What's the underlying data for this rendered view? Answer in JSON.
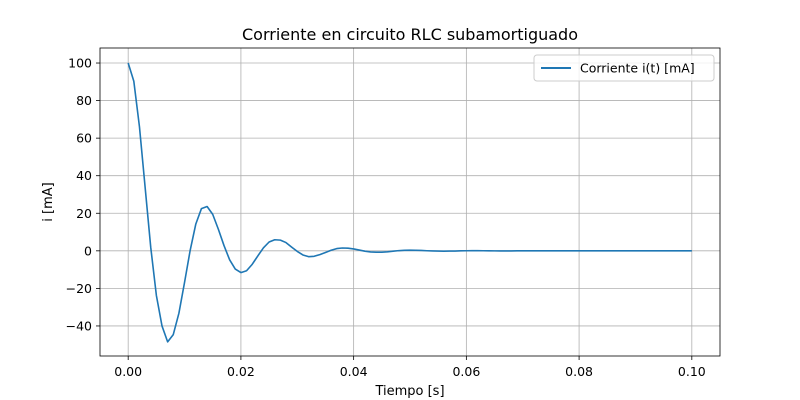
{
  "chart_data": {
    "type": "line",
    "title": "Corriente en circuito RLC subamortiguado",
    "xlabel": "Tiempo [s]",
    "ylabel": "i [mA]",
    "xlim": [
      -0.005,
      0.105
    ],
    "ylim": [
      -56,
      108
    ],
    "xticks": [
      0.0,
      0.02,
      0.04,
      0.06,
      0.08,
      0.1
    ],
    "xtick_labels": [
      "0.00",
      "0.02",
      "0.04",
      "0.06",
      "0.08",
      "0.10"
    ],
    "yticks": [
      -40,
      -20,
      0,
      20,
      40,
      60,
      80,
      100
    ],
    "ytick_labels": [
      "−40",
      "−20",
      "0",
      "20",
      "40",
      "60",
      "80",
      "100"
    ],
    "grid": true,
    "legend": {
      "position": "top-right"
    },
    "series": [
      {
        "name": "Corriente i(t) [mA]",
        "color": "#1f77b4",
        "x": [
          0.0,
          0.001,
          0.002,
          0.003,
          0.004,
          0.005,
          0.006,
          0.007,
          0.008,
          0.009,
          0.01,
          0.011,
          0.012,
          0.013,
          0.014,
          0.015,
          0.016,
          0.017,
          0.018,
          0.019,
          0.02,
          0.021,
          0.022,
          0.023,
          0.024,
          0.025,
          0.026,
          0.027,
          0.028,
          0.029,
          0.03,
          0.031,
          0.032,
          0.033,
          0.034,
          0.035,
          0.036,
          0.037,
          0.038,
          0.039,
          0.04,
          0.041,
          0.042,
          0.043,
          0.044,
          0.045,
          0.046,
          0.047,
          0.048,
          0.049,
          0.05,
          0.051,
          0.052,
          0.053,
          0.054,
          0.055,
          0.056,
          0.057,
          0.058,
          0.059,
          0.06,
          0.061,
          0.062,
          0.063,
          0.064,
          0.065,
          0.066,
          0.067,
          0.068,
          0.069,
          0.07,
          0.071,
          0.072,
          0.073,
          0.074,
          0.075,
          0.076,
          0.077,
          0.078,
          0.079,
          0.08,
          0.081,
          0.082,
          0.083,
          0.084,
          0.085,
          0.086,
          0.087,
          0.088,
          0.089,
          0.09,
          0.091,
          0.092,
          0.093,
          0.094,
          0.095,
          0.096,
          0.097,
          0.098,
          0.099,
          0.1
        ],
        "y": [
          100.0,
          90.3,
          66.1,
          34.0,
          1.9,
          -23.7,
          -40.0,
          -48.5,
          -44.6,
          -33.2,
          -16.8,
          0.3,
          14.3,
          22.5,
          23.6,
          19.4,
          11.5,
          2.8,
          -4.8,
          -9.7,
          -11.6,
          -10.6,
          -7.2,
          -2.7,
          1.6,
          4.7,
          5.9,
          5.7,
          4.4,
          2.0,
          -0.3,
          -2.2,
          -3.1,
          -2.9,
          -2.0,
          -0.9,
          0.3,
          1.2,
          1.5,
          1.4,
          1.0,
          0.4,
          -0.2,
          -0.6,
          -0.7,
          -0.7,
          -0.5,
          -0.2,
          0.1,
          0.3,
          0.35,
          0.3,
          0.2,
          0.05,
          -0.05,
          -0.15,
          -0.2,
          -0.15,
          -0.1,
          0.0,
          0.05,
          0.08,
          0.08,
          0.05,
          0.02,
          -0.02,
          -0.04,
          -0.04,
          -0.03,
          -0.01,
          0.01,
          0.02,
          0.02,
          0.01,
          0.0,
          -0.01,
          -0.01,
          -0.01,
          0.0,
          0.0,
          0.0,
          0.0,
          0.0,
          0.0,
          0.0,
          0.0,
          0.0,
          0.0,
          0.0,
          0.0,
          0.0,
          0.0,
          0.0,
          0.0,
          0.0,
          0.0,
          0.0,
          0.0,
          0.0,
          0.0,
          0.0
        ]
      }
    ]
  }
}
